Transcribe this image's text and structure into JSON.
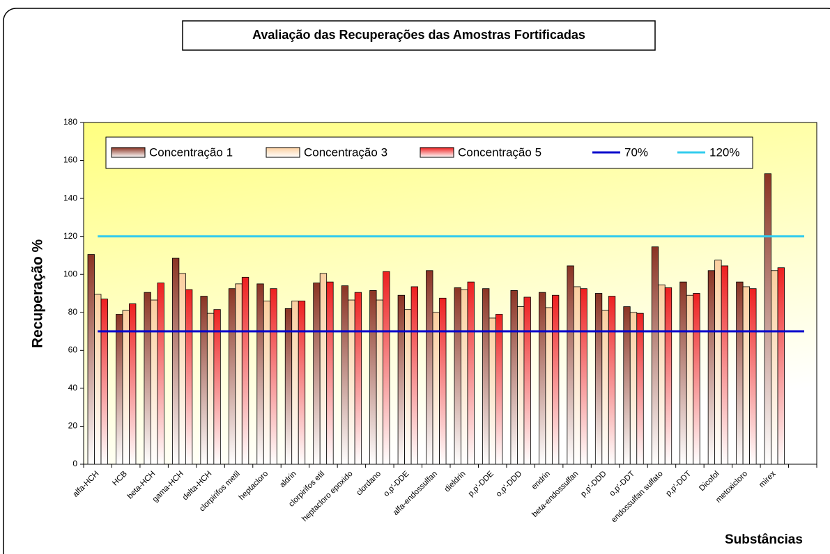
{
  "chart_data": {
    "type": "bar",
    "title": "Avaliação das Recuperações das Amostras Fortificadas",
    "y_label": "Recuperação %",
    "x_label": "Substâncias",
    "categories": [
      "alfa-HCH",
      "HCB",
      "beta-HCH",
      "gama-HCH",
      "delta-HCH",
      "clorpirifos metil",
      "heptacloro",
      "aldrin",
      "clorpirifos etil",
      "heptacloro epoxido",
      "clordano",
      "o,p'-DDE",
      "alfa-endossulfan",
      "dieldrin",
      "p,p'-DDE",
      "o,p'-DDD",
      "endrin",
      "beta-endossulfan",
      "p,p'-DDD",
      "o,p'-DDT",
      "endossulfan sulfato",
      "p,p'-DDT",
      "Dicofol",
      "metoxicloro",
      "mirex",
      null
    ],
    "series": [
      {
        "name": "Concentração 1",
        "color": "#8b3424",
        "values": [
          110.5,
          79,
          90.5,
          108.5,
          88.5,
          92.5,
          95,
          82,
          95.5,
          94,
          91.5,
          89,
          102,
          93,
          92.5,
          91.5,
          90.5,
          104.5,
          90,
          83,
          114.5,
          96,
          102,
          96,
          153,
          null
        ]
      },
      {
        "name": "Concentração 3",
        "color": "#fbcfa0",
        "values": [
          89.5,
          81,
          86.5,
          100.5,
          79.5,
          95,
          86,
          86,
          100.5,
          86.5,
          86.5,
          81.5,
          80,
          92,
          77,
          83,
          82.5,
          93.5,
          81,
          80,
          94.5,
          89,
          107.5,
          93.5,
          102,
          null
        ]
      },
      {
        "name": "Concentração 5",
        "color": "#ee2020",
        "values": [
          87,
          84.5,
          95.5,
          92,
          81.5,
          98.5,
          92.5,
          86,
          96,
          90.5,
          101.5,
          93.5,
          87.5,
          96,
          79,
          88,
          89,
          92.5,
          88.5,
          79.5,
          93,
          90,
          104.5,
          92.5,
          103.5,
          null
        ]
      }
    ],
    "reference_lines": [
      {
        "name": "70%",
        "color": "#0000cc",
        "value": 70
      },
      {
        "name": "120%",
        "color": "#33ccee",
        "value": 120
      }
    ],
    "ylim": [
      0,
      180
    ],
    "yticks": [
      0,
      20,
      40,
      60,
      80,
      100,
      120,
      140,
      160,
      180
    ]
  }
}
